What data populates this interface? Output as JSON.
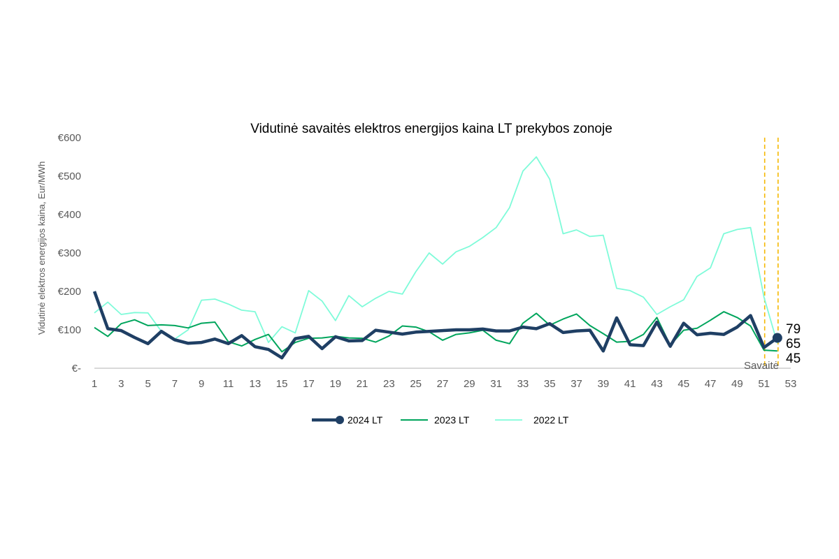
{
  "chart_data": {
    "type": "line",
    "title": "Vidutinė savaitės elektros energijos kaina LT prekybos zonoje",
    "ylabel": "Vidutinė elektros energijos kaina, Eur/MWh",
    "xlabel": "Savaitė",
    "ylim": [
      0,
      600
    ],
    "xlim": [
      1,
      53
    ],
    "y_ticks": [
      0,
      100,
      200,
      300,
      400,
      500,
      600
    ],
    "y_tick_labels": [
      "€-",
      "€100",
      "€200",
      "€300",
      "€400",
      "€500",
      "€600"
    ],
    "x_ticks": [
      1,
      3,
      5,
      7,
      9,
      11,
      13,
      15,
      17,
      19,
      21,
      23,
      25,
      27,
      29,
      31,
      33,
      35,
      37,
      39,
      41,
      43,
      45,
      47,
      49,
      51,
      53
    ],
    "x_tick_labels": [
      "1",
      "3",
      "5",
      "7",
      "9",
      "11",
      "13",
      "15",
      "17",
      "19",
      "21",
      "23",
      "25",
      "27",
      "29",
      "31",
      "33",
      "35",
      "37",
      "39",
      "41",
      "43",
      "45",
      "47",
      "49",
      "51",
      "53"
    ],
    "grid": false,
    "legend": "bottom",
    "highlight_weeks": [
      51,
      52
    ],
    "end_labels": [
      "79",
      "65",
      "45"
    ],
    "series": [
      {
        "name": "2024 LT",
        "color": "#1f3f64",
        "x": [
          1,
          2,
          3,
          4,
          5,
          6,
          7,
          8,
          9,
          10,
          11,
          12,
          13,
          14,
          15,
          16,
          17,
          18,
          19,
          20,
          21,
          22,
          23,
          24,
          25,
          26,
          27,
          28,
          29,
          30,
          31,
          32,
          33,
          34,
          35,
          36,
          37,
          38,
          39,
          40,
          41,
          42,
          43,
          44,
          45,
          46,
          47,
          48,
          49,
          50,
          51,
          52
        ],
        "values": [
          200,
          103,
          98,
          80,
          64,
          96,
          74,
          65,
          67,
          76,
          64,
          85,
          56,
          49,
          27,
          77,
          83,
          51,
          82,
          71,
          72,
          99,
          94,
          89,
          94,
          96,
          98,
          100,
          100,
          102,
          97,
          97,
          107,
          103,
          116,
          93,
          97,
          99,
          45,
          131,
          61,
          59,
          120,
          57,
          117,
          87,
          91,
          88,
          107,
          137,
          54,
          79
        ]
      },
      {
        "name": "2023 LT",
        "color": "#00a55c",
        "x": [
          1,
          2,
          3,
          4,
          5,
          6,
          7,
          8,
          9,
          10,
          11,
          12,
          13,
          14,
          15,
          16,
          17,
          18,
          19,
          20,
          21,
          22,
          23,
          24,
          25,
          26,
          27,
          28,
          29,
          30,
          31,
          32,
          33,
          34,
          35,
          36,
          37,
          38,
          39,
          40,
          41,
          42,
          43,
          44,
          45,
          46,
          47,
          48,
          49,
          50,
          51,
          52
        ],
        "values": [
          106,
          83,
          116,
          126,
          111,
          113,
          111,
          105,
          117,
          120,
          69,
          58,
          75,
          88,
          43,
          67,
          78,
          79,
          83,
          79,
          78,
          68,
          84,
          110,
          107,
          95,
          73,
          88,
          92,
          99,
          73,
          64,
          117,
          143,
          112,
          128,
          141,
          111,
          90,
          68,
          70,
          88,
          132,
          60,
          99,
          104,
          125,
          147,
          132,
          110,
          47,
          45
        ]
      },
      {
        "name": "2022 LT",
        "color": "#7ffbd9",
        "x": [
          1,
          2,
          3,
          4,
          5,
          6,
          7,
          8,
          9,
          10,
          11,
          12,
          13,
          14,
          15,
          16,
          17,
          18,
          19,
          20,
          21,
          22,
          23,
          24,
          25,
          26,
          27,
          28,
          29,
          30,
          31,
          32,
          33,
          34,
          35,
          36,
          37,
          38,
          39,
          40,
          41,
          42,
          43,
          44,
          45,
          46,
          47,
          48,
          49,
          50,
          51,
          52
        ],
        "values": [
          144,
          172,
          140,
          145,
          144,
          96,
          76,
          100,
          177,
          180,
          167,
          151,
          147,
          67,
          108,
          92,
          202,
          175,
          124,
          189,
          160,
          182,
          200,
          193,
          251,
          300,
          271,
          303,
          317,
          340,
          366,
          418,
          513,
          550,
          492,
          350,
          360,
          343,
          346,
          208,
          202,
          185,
          140,
          160,
          178,
          239,
          261,
          350,
          361,
          366,
          185,
          65
        ]
      }
    ]
  }
}
